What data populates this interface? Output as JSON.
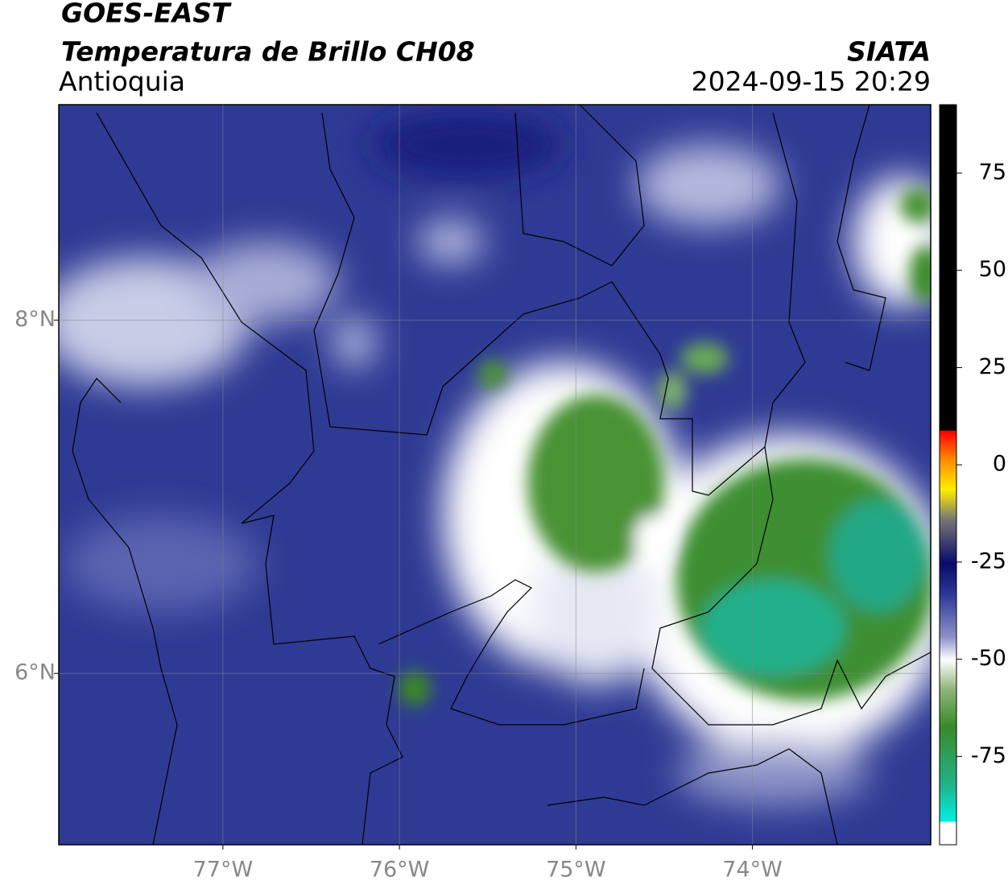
{
  "header": {
    "title": "GOES-EAST",
    "subtitle": "Temperatura de Brillo CH08",
    "region": "Antioquia",
    "source": "SIATA",
    "datetime": "2024-09-15 20:29"
  },
  "map": {
    "xlim": [
      -77.93,
      -72.99
    ],
    "ylim": [
      5.03,
      9.22
    ],
    "xticks": [
      {
        "value": -77,
        "label": "77°W"
      },
      {
        "value": -76,
        "label": "76°W"
      },
      {
        "value": -75,
        "label": "75°W"
      },
      {
        "value": -74,
        "label": "74°W"
      }
    ],
    "yticks": [
      {
        "value": 6,
        "label": "6°N"
      },
      {
        "value": 8,
        "label": "8°N"
      }
    ],
    "grid": true
  },
  "colorbar": {
    "lim": [
      -97.7,
      92.6
    ],
    "ticks": [
      75,
      50,
      25,
      0,
      -25,
      -50,
      -75
    ]
  }
}
